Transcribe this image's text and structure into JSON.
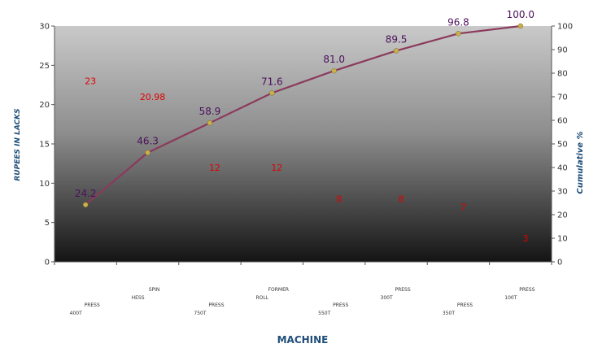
{
  "chart_data": {
    "type": "line",
    "xlabel": "MACHINE",
    "ylabel": "RUPEES IN LACKS",
    "y2label": "Cumulative  %",
    "ylim": [
      0,
      30
    ],
    "y2lim": [
      0,
      100
    ],
    "yticks": [
      "0",
      "5",
      "10",
      "15",
      "20",
      "25",
      "30"
    ],
    "y2ticks": [
      "0",
      "10",
      "20",
      "30",
      "40",
      "50",
      "60",
      "70",
      "80",
      "90",
      "100"
    ],
    "categories": [
      [
        "PRESS",
        "400T"
      ],
      [
        "SPIN",
        "HESS"
      ],
      [
        "PRESS",
        "750T"
      ],
      [
        "FORMER",
        "ROLL"
      ],
      [
        "PRESS",
        "550T"
      ],
      [
        "PRESS",
        "300T"
      ],
      [
        "PRESS",
        "350T"
      ],
      [
        "PRESS",
        "100T"
      ]
    ],
    "bar_values_labels": [
      "23",
      "20.98",
      "12",
      "12",
      "8",
      "8",
      "7",
      "3"
    ],
    "cumulative_percent": [
      24.2,
      46.3,
      58.9,
      71.6,
      81.0,
      89.5,
      96.8,
      100.0
    ],
    "cumulative_labels": [
      "24.2",
      "46.3",
      "58.9",
      "71.6",
      "81.0",
      "89.5",
      "96.8",
      "100.0"
    ],
    "grid": false,
    "line_color": "#8b3a5c",
    "marker_color": "#c8b04a",
    "bar_label_color": "#e00000",
    "cum_label_color": "#4b0f5c",
    "axis_title_color": "#1f4e79"
  }
}
